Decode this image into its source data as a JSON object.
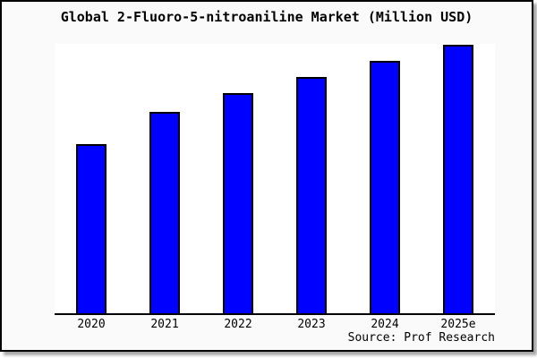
{
  "window": {
    "title": "Global 2-Fluoro-5-nitroaniline Market (Million USD)"
  },
  "source": {
    "label": "Source: Prof Research"
  },
  "chart_data": {
    "type": "bar",
    "title": "Global 2-Fluoro-5-nitroaniline Market (Million USD)",
    "categories": [
      "2020",
      "2021",
      "2022",
      "2023",
      "2024",
      "2025e"
    ],
    "values": [
      63,
      75,
      82,
      88,
      94,
      100
    ],
    "units": "relative index (no y-axis scale shown; 2025e bar = 100)",
    "xlabel": "",
    "ylabel": "",
    "ylim": [
      0,
      100
    ],
    "grid": false,
    "y_axis_visible": false,
    "legend": "none",
    "colors": {
      "bar_fill": "#0000ff",
      "bar_border": "#000000",
      "plot_background": "#ffffff",
      "canvas_background": "#fafafa",
      "frame_border": "#000000",
      "text": "#000000"
    }
  }
}
